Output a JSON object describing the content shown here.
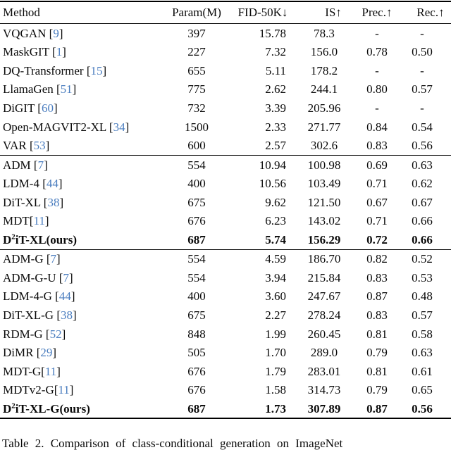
{
  "colors": {
    "citation_link": "#4a7dbf",
    "text": "#0a0a0a",
    "rule": "#000000"
  },
  "caption": {
    "text": "Table 2. Comparison of class-conditional generation on ImageNet"
  },
  "table": {
    "columns": [
      {
        "key": "method",
        "label": "Method",
        "arrow": ""
      },
      {
        "key": "param",
        "label": "Param(M)",
        "arrow": ""
      },
      {
        "key": "fid",
        "label": "FID-50K",
        "arrow": "↓"
      },
      {
        "key": "is",
        "label": "IS",
        "arrow": "↑"
      },
      {
        "key": "prec",
        "label": "Prec.",
        "arrow": "↑"
      },
      {
        "key": "rec",
        "label": "Rec.",
        "arrow": "↑"
      }
    ],
    "sections": [
      {
        "name": "autoregressive-and-token-models",
        "rows": [
          {
            "method": "VQGAN",
            "cite": "9",
            "cite_space": true,
            "bold": false,
            "param": "397",
            "fid": "15.78",
            "is": "78.3",
            "prec": "-",
            "rec": "-"
          },
          {
            "method": "MaskGIT",
            "cite": "1",
            "cite_space": true,
            "bold": false,
            "param": "227",
            "fid": "7.32",
            "is": "156.0",
            "prec": "0.78",
            "rec": "0.50"
          },
          {
            "method": "DQ-Transformer",
            "cite": "15",
            "cite_space": true,
            "bold": false,
            "param": "655",
            "fid": "5.11",
            "is": "178.2",
            "prec": "-",
            "rec": "-"
          },
          {
            "method": "LlamaGen",
            "cite": "51",
            "cite_space": true,
            "bold": false,
            "param": "775",
            "fid": "2.62",
            "is": "244.1",
            "prec": "0.80",
            "rec": "0.57"
          },
          {
            "method": "DiGIT",
            "cite": "60",
            "cite_space": true,
            "bold": false,
            "param": "732",
            "fid": "3.39",
            "is": "205.96",
            "prec": "-",
            "rec": "-"
          },
          {
            "method": "Open-MAGVIT2-XL",
            "cite": "34",
            "cite_space": true,
            "bold": false,
            "param": "1500",
            "fid": "2.33",
            "is": "271.77",
            "prec": "0.84",
            "rec": "0.54"
          },
          {
            "method": "VAR",
            "cite": "53",
            "cite_space": true,
            "bold": false,
            "param": "600",
            "fid": "2.57",
            "is": "302.6",
            "prec": "0.83",
            "rec": "0.56"
          }
        ]
      },
      {
        "name": "diffusion-without-guidance",
        "rows": [
          {
            "method": "ADM",
            "cite": "7",
            "cite_space": true,
            "bold": false,
            "param": "554",
            "fid": "10.94",
            "is": "100.98",
            "prec": "0.69",
            "rec": "0.63"
          },
          {
            "method": "LDM-4",
            "cite": "44",
            "cite_space": true,
            "bold": false,
            "param": "400",
            "fid": "10.56",
            "is": "103.49",
            "prec": "0.71",
            "rec": "0.62"
          },
          {
            "method": "DiT-XL",
            "cite": "38",
            "cite_space": true,
            "bold": false,
            "param": "675",
            "fid": "9.62",
            "is": "121.50",
            "prec": "0.67",
            "rec": "0.67"
          },
          {
            "method": "MDT",
            "cite": "11",
            "cite_space": false,
            "bold": false,
            "param": "676",
            "fid": "6.23",
            "is": "143.02",
            "prec": "0.71",
            "rec": "0.66"
          },
          {
            "method": "D²iT-XL(ours)",
            "cite": null,
            "cite_space": false,
            "bold": true,
            "param": "687",
            "fid": "5.74",
            "is": "156.29",
            "prec": "0.72",
            "rec": "0.66"
          }
        ]
      },
      {
        "name": "diffusion-with-guidance",
        "rows": [
          {
            "method": "ADM-G",
            "cite": "7",
            "cite_space": true,
            "bold": false,
            "param": "554",
            "fid": "4.59",
            "is": "186.70",
            "prec": "0.82",
            "rec": "0.52"
          },
          {
            "method": "ADM-G-U",
            "cite": "7",
            "cite_space": true,
            "bold": false,
            "param": "554",
            "fid": "3.94",
            "is": "215.84",
            "prec": "0.83",
            "rec": "0.53"
          },
          {
            "method": "LDM-4-G",
            "cite": "44",
            "cite_space": true,
            "bold": false,
            "param": "400",
            "fid": "3.60",
            "is": "247.67",
            "prec": "0.87",
            "rec": "0.48"
          },
          {
            "method": "DiT-XL-G",
            "cite": "38",
            "cite_space": true,
            "bold": false,
            "param": "675",
            "fid": "2.27",
            "is": "278.24",
            "prec": "0.83",
            "rec": "0.57"
          },
          {
            "method": "RDM-G",
            "cite": "52",
            "cite_space": true,
            "bold": false,
            "param": "848",
            "fid": "1.99",
            "is": "260.45",
            "prec": "0.81",
            "rec": "0.58"
          },
          {
            "method": "DiMR",
            "cite": "29",
            "cite_space": true,
            "bold": false,
            "param": "505",
            "fid": "1.70",
            "is": "289.0",
            "prec": "0.79",
            "rec": "0.63"
          },
          {
            "method": "MDT-G",
            "cite": "11",
            "cite_space": false,
            "bold": false,
            "param": "676",
            "fid": "1.79",
            "is": "283.01",
            "prec": "0.81",
            "rec": "0.61"
          },
          {
            "method": "MDTv2-G",
            "cite": "11",
            "cite_space": false,
            "bold": false,
            "param": "676",
            "fid": "1.58",
            "is": "314.73",
            "prec": "0.79",
            "rec": "0.65"
          },
          {
            "method": "D²iT-XL-G(ours)",
            "cite": null,
            "cite_space": false,
            "bold": true,
            "param": "687",
            "fid": "1.73",
            "is": "307.89",
            "prec": "0.87",
            "rec": "0.56"
          }
        ]
      }
    ]
  }
}
